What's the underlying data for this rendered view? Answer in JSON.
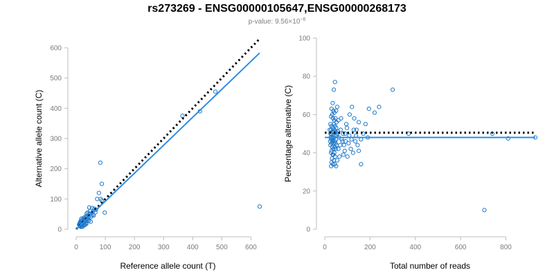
{
  "title": "rs273269 - ENSG00000105647,ENSG00000268173",
  "subtitle_prefix": "p-value: 9.56×10",
  "subtitle_exp": "−6",
  "colors": {
    "points": "#1f78c8",
    "fit": "#2b8ce6",
    "reference": "#000000",
    "axis": "#bdbdbd"
  },
  "chart_data": [
    {
      "type": "scatter",
      "xlabel": "Reference allele count (T)",
      "ylabel": "Alternative allele count (C)",
      "xlim": [
        0,
        630
      ],
      "ylim": [
        0,
        600
      ],
      "xticks": [
        0,
        100,
        200,
        300,
        400,
        500,
        600
      ],
      "yticks": [
        0,
        100,
        200,
        300,
        400,
        500,
        600
      ],
      "grid": false,
      "reference_line": {
        "style": "dotted",
        "x": [
          0,
          630
        ],
        "y": [
          0,
          630
        ]
      },
      "fit_line": {
        "style": "solid",
        "x": [
          0,
          630
        ],
        "y": [
          0,
          583
        ]
      },
      "points": [
        [
          478,
          455
        ],
        [
          425,
          390
        ],
        [
          365,
          375
        ],
        [
          630,
          75
        ],
        [
          83,
          220
        ],
        [
          88,
          150
        ],
        [
          78,
          120
        ],
        [
          72,
          100
        ],
        [
          98,
          55
        ],
        [
          84,
          100
        ],
        [
          88,
          95
        ],
        [
          55,
          70
        ],
        [
          45,
          72
        ],
        [
          62,
          68
        ],
        [
          48,
          60
        ],
        [
          40,
          55
        ],
        [
          55,
          55
        ],
        [
          68,
          65
        ],
        [
          36,
          52
        ],
        [
          58,
          48
        ],
        [
          42,
          45
        ],
        [
          32,
          42
        ],
        [
          50,
          40
        ],
        [
          28,
          38
        ],
        [
          38,
          35
        ],
        [
          25,
          30
        ],
        [
          44,
          28
        ],
        [
          22,
          25
        ],
        [
          18,
          35
        ],
        [
          30,
          25
        ],
        [
          20,
          20
        ],
        [
          28,
          20
        ],
        [
          15,
          22
        ],
        [
          35,
          18
        ],
        [
          20,
          15
        ],
        [
          25,
          12
        ],
        [
          15,
          15
        ],
        [
          12,
          12
        ],
        [
          18,
          10
        ],
        [
          30,
          14
        ],
        [
          22,
          8
        ],
        [
          14,
          18
        ],
        [
          40,
          30
        ],
        [
          50,
          25
        ],
        [
          60,
          45
        ],
        [
          35,
          30
        ],
        [
          26,
          28
        ],
        [
          16,
          28
        ],
        [
          12,
          20
        ],
        [
          10,
          15
        ],
        [
          24,
          22
        ],
        [
          32,
          26
        ],
        [
          18,
          18
        ],
        [
          13,
          10
        ],
        [
          42,
          38
        ],
        [
          28,
          32
        ],
        [
          36,
          40
        ],
        [
          20,
          30
        ],
        [
          24,
          36
        ],
        [
          14,
          24
        ],
        [
          30,
          34
        ],
        [
          45,
          50
        ],
        [
          52,
          46
        ],
        [
          66,
          56
        ],
        [
          38,
          44
        ],
        [
          27,
          16
        ],
        [
          16,
          8
        ],
        [
          11,
          14
        ],
        [
          19,
          22
        ],
        [
          33,
          20
        ]
      ]
    },
    {
      "type": "scatter",
      "xlabel": "Total number of reads",
      "ylabel": "Percentage alternative (C)",
      "xlim": [
        0,
        930
      ],
      "ylim": [
        0,
        100
      ],
      "xticks": [
        0,
        200,
        400,
        600,
        800
      ],
      "yticks": [
        0,
        20,
        40,
        60,
        80,
        100
      ],
      "grid": false,
      "reference_line": {
        "style": "dotted",
        "y": 50.5
      },
      "fit_line": {
        "style": "solid",
        "y": 48
      },
      "points": [
        [
          45,
          77
        ],
        [
          40,
          73
        ],
        [
          300,
          73
        ],
        [
          35,
          66
        ],
        [
          55,
          64
        ],
        [
          30,
          63
        ],
        [
          50,
          62
        ],
        [
          38,
          62
        ],
        [
          42,
          61
        ],
        [
          33,
          60
        ],
        [
          28,
          59
        ],
        [
          36,
          58
        ],
        [
          47,
          58
        ],
        [
          60,
          57
        ],
        [
          52,
          56
        ],
        [
          25,
          55
        ],
        [
          40,
          55
        ],
        [
          45,
          54
        ],
        [
          30,
          54
        ],
        [
          35,
          53
        ],
        [
          50,
          53
        ],
        [
          28,
          52
        ],
        [
          42,
          52
        ],
        [
          33,
          51
        ],
        [
          38,
          51
        ],
        [
          48,
          51
        ],
        [
          55,
          50
        ],
        [
          25,
          50
        ],
        [
          30,
          50
        ],
        [
          36,
          49
        ],
        [
          44,
          49
        ],
        [
          40,
          48
        ],
        [
          32,
          48
        ],
        [
          28,
          47
        ],
        [
          50,
          47
        ],
        [
          35,
          46
        ],
        [
          45,
          46
        ],
        [
          30,
          45
        ],
        [
          40,
          45
        ],
        [
          52,
          44
        ],
        [
          25,
          44
        ],
        [
          33,
          43
        ],
        [
          38,
          42
        ],
        [
          48,
          42
        ],
        [
          30,
          41
        ],
        [
          42,
          40
        ],
        [
          28,
          40
        ],
        [
          35,
          39
        ],
        [
          45,
          38
        ],
        [
          32,
          37
        ],
        [
          40,
          36
        ],
        [
          30,
          35
        ],
        [
          36,
          34
        ],
        [
          44,
          34
        ],
        [
          28,
          33
        ],
        [
          50,
          33
        ],
        [
          120,
          64
        ],
        [
          110,
          60
        ],
        [
          130,
          58
        ],
        [
          150,
          56
        ],
        [
          95,
          55
        ],
        [
          180,
          55
        ],
        [
          140,
          52
        ],
        [
          170,
          50
        ],
        [
          90,
          50
        ],
        [
          190,
          48
        ],
        [
          160,
          47
        ],
        [
          135,
          46
        ],
        [
          105,
          45
        ],
        [
          145,
          44
        ],
        [
          115,
          42
        ],
        [
          150,
          41
        ],
        [
          125,
          40
        ],
        [
          100,
          38
        ],
        [
          160,
          34
        ],
        [
          85,
          44
        ],
        [
          80,
          50
        ],
        [
          75,
          47
        ],
        [
          70,
          52
        ],
        [
          65,
          38
        ],
        [
          220,
          61
        ],
        [
          240,
          64
        ],
        [
          195,
          63
        ],
        [
          370,
          50
        ],
        [
          740,
          50
        ],
        [
          810,
          47.5
        ],
        [
          930,
          48
        ],
        [
          705,
          10
        ],
        [
          60,
          42
        ],
        [
          55,
          36
        ],
        [
          62,
          48
        ],
        [
          68,
          44
        ],
        [
          72,
          58
        ],
        [
          78,
          46
        ],
        [
          88,
          41
        ],
        [
          98,
          53
        ],
        [
          108,
          49
        ],
        [
          118,
          47
        ],
        [
          128,
          52
        ],
        [
          138,
          49
        ],
        [
          92,
          46
        ],
        [
          82,
          39
        ],
        [
          58,
          51
        ],
        [
          48,
          45
        ],
        [
          42,
          57
        ],
        [
          38,
          39
        ],
        [
          34,
          47
        ],
        [
          26,
          48
        ],
        [
          24,
          46
        ],
        [
          22,
          52
        ],
        [
          44,
          43
        ],
        [
          52,
          49
        ]
      ]
    }
  ]
}
